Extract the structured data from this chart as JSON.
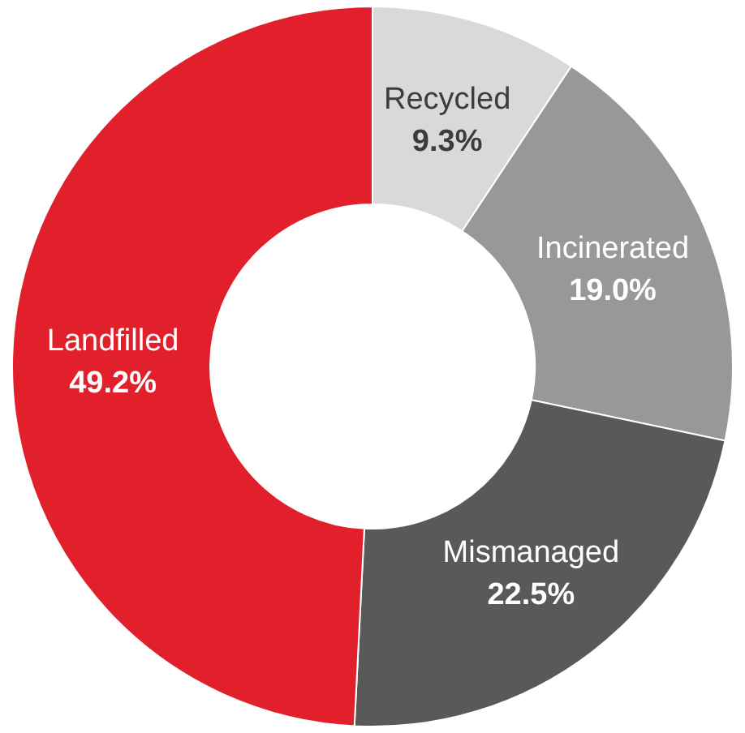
{
  "chart_data": {
    "type": "donut",
    "categories": [
      "Recycled",
      "Incinerated",
      "Mismanaged",
      "Landfilled"
    ],
    "values": [
      9.3,
      19.0,
      22.5,
      49.2
    ],
    "colors": [
      "#d9d9d9",
      "#999896",
      "#595959",
      "#e1202b"
    ],
    "value_labels": [
      "9.3%",
      "19.0%",
      "22.5%",
      "49.2%"
    ],
    "legend": false
  }
}
